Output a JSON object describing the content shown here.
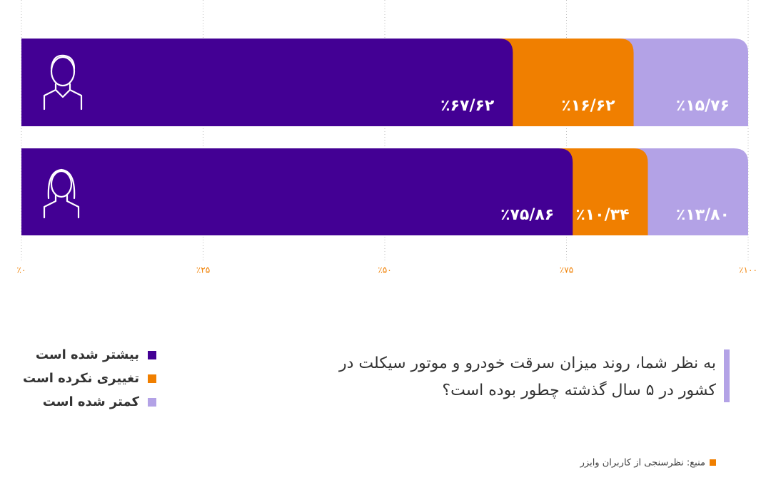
{
  "chart_data": {
    "type": "stacked_bar",
    "title": [
      "به نظر شما، روند میزان سرقت خودرو و موتور سیکلت در",
      "کشور در ۵ سال گذشته چطور بوده است؟"
    ],
    "source": "منبع: نظرسنجی از کاربران وایزر",
    "categories": [
      null,
      null
    ],
    "series": [
      {
        "name": "بیشتر شده است",
        "color": "#430094",
        "values": [
          67.62,
          75.86
        ],
        "value_labels": [
          "٪۶۷/۶۲",
          "٪۷۵/۸۶"
        ]
      },
      {
        "name": "تغییری نکرده است",
        "color": "#f07f00",
        "values": [
          16.62,
          10.34
        ],
        "value_labels": [
          "٪۱۶/۶۲",
          "٪۱۰/۳۴"
        ]
      },
      {
        "name": "کمتر شده است",
        "color": "#b3a2e6",
        "values": [
          15.76,
          13.8
        ],
        "value_labels": [
          "٪۱۵/۷۶",
          "٪۱۳/۸۰"
        ]
      }
    ],
    "xlim": [
      0,
      100
    ],
    "xticks": [
      {
        "value": 0,
        "label": "٪۰"
      },
      {
        "value": 25,
        "label": "٪۲۵"
      },
      {
        "value": 50,
        "label": "٪۵۰"
      },
      {
        "value": 75,
        "label": "٪۷۵"
      },
      {
        "value": 100,
        "label": "٪۱۰۰"
      }
    ],
    "grid": true
  }
}
